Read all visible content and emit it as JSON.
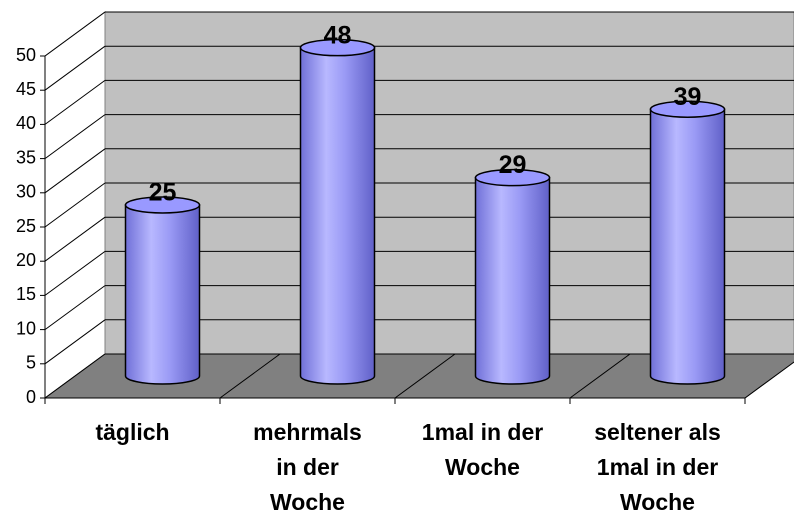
{
  "chart_data": {
    "type": "cylinder-bar",
    "categories": [
      "täglich",
      "mehrmals\nin der\nWoche",
      "1mal in der\nWoche",
      "seltener als\n1mal in der\nWoche"
    ],
    "values": [
      25,
      48,
      29,
      39
    ],
    "color": "#9999ff",
    "ylim": [
      0,
      50
    ],
    "yticks": [
      0,
      5,
      10,
      15,
      20,
      25,
      30,
      35,
      40,
      45,
      50
    ],
    "grid": true
  }
}
